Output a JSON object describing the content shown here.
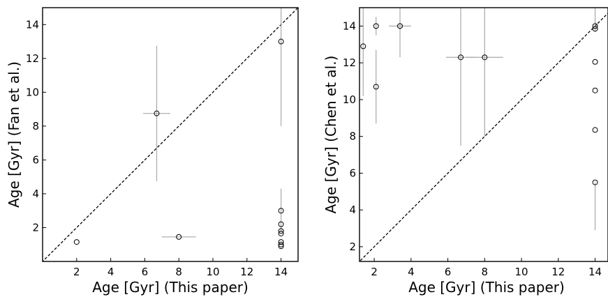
{
  "chart_data": [
    {
      "type": "scatter",
      "title": "",
      "xlabel": "Age [Gyr] (This paper)",
      "ylabel": "Age [Gyr] (Fan et al.)",
      "xlim": [
        0,
        15
      ],
      "ylim": [
        0,
        15
      ],
      "xticks": [
        2,
        4,
        6,
        8,
        10,
        12,
        14
      ],
      "yticks": [
        2,
        4,
        6,
        8,
        10,
        12,
        14
      ],
      "identity_line": true,
      "grid": false,
      "points": [
        {
          "x": 2.0,
          "y": 1.15
        },
        {
          "x": 6.7,
          "y": 8.75,
          "xerr": [
            0.8,
            0.8
          ],
          "yerr": [
            4.0,
            4.0
          ]
        },
        {
          "x": 8.0,
          "y": 1.45,
          "xerr": [
            1.0,
            1.0
          ]
        },
        {
          "x": 14.0,
          "y": 13.0,
          "yerr": [
            5.0,
            2.0
          ]
        },
        {
          "x": 14.0,
          "y": 3.0,
          "yerr": [
            1.3,
            1.3
          ]
        },
        {
          "x": 14.0,
          "y": 2.2
        },
        {
          "x": 14.0,
          "y": 1.8
        },
        {
          "x": 14.0,
          "y": 1.65
        },
        {
          "x": 14.0,
          "y": 1.15
        },
        {
          "x": 14.0,
          "y": 1.0
        },
        {
          "x": 14.0,
          "y": 0.9
        }
      ]
    },
    {
      "type": "scatter",
      "title": "",
      "xlabel": "Age [Gyr] (This paper)",
      "ylabel": "Age [Gyr] (Chen et al.)",
      "xlim": [
        1.2,
        14.7
      ],
      "ylim": [
        1.2,
        15.0
      ],
      "xticks": [
        2,
        4,
        6,
        8,
        10,
        12,
        14
      ],
      "yticks": [
        2,
        4,
        6,
        8,
        10,
        12,
        14
      ],
      "identity_line": true,
      "grid": false,
      "points": [
        {
          "x": 1.4,
          "y": 12.9,
          "yerr": [
            2.7,
            2.1
          ]
        },
        {
          "x": 2.1,
          "y": 10.7,
          "yerr": [
            2.0,
            2.0
          ]
        },
        {
          "x": 2.1,
          "y": 14.0,
          "yerr": [
            0.5,
            0.5
          ]
        },
        {
          "x": 3.4,
          "y": 14.0,
          "xerr": [
            0.6,
            0.6
          ],
          "yerr": [
            1.7,
            1.0
          ]
        },
        {
          "x": 6.7,
          "y": 12.3,
          "xerr": [
            0.8,
            0.8
          ],
          "yerr": [
            4.8,
            2.7
          ]
        },
        {
          "x": 8.0,
          "y": 12.3,
          "xerr": [
            1.0,
            1.0
          ],
          "yerr": [
            4.3,
            2.7
          ]
        },
        {
          "x": 14.0,
          "y": 14.0,
          "yerr": [
            0.3,
            1.0
          ]
        },
        {
          "x": 14.0,
          "y": 13.85
        },
        {
          "x": 14.0,
          "y": 12.05
        },
        {
          "x": 14.0,
          "y": 10.5
        },
        {
          "x": 14.0,
          "y": 8.35
        },
        {
          "x": 14.0,
          "y": 5.5,
          "yerr": [
            2.6,
            0
          ]
        }
      ]
    }
  ]
}
